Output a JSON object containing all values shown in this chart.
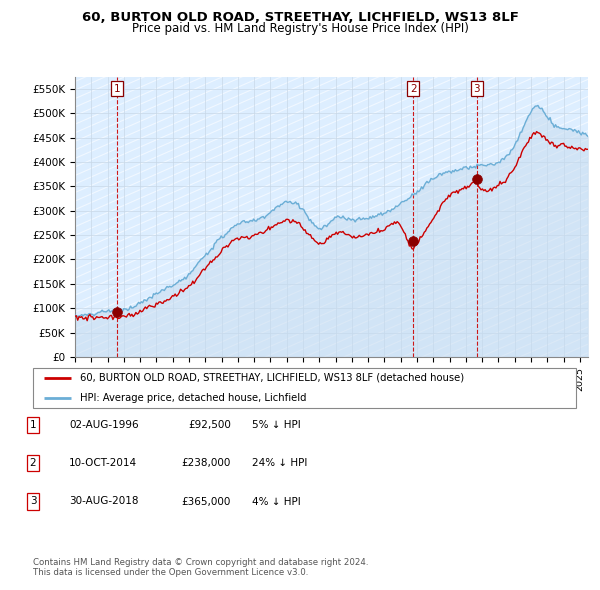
{
  "title": "60, BURTON OLD ROAD, STREETHAY, LICHFIELD, WS13 8LF",
  "subtitle": "Price paid vs. HM Land Registry's House Price Index (HPI)",
  "ylim": [
    0,
    575000
  ],
  "yticks": [
    0,
    50000,
    100000,
    150000,
    200000,
    250000,
    300000,
    350000,
    400000,
    450000,
    500000,
    550000
  ],
  "xlim_start": 1994.0,
  "xlim_end": 2025.5,
  "sale_dates": [
    1996.583,
    2014.774,
    2018.663
  ],
  "sale_prices": [
    92500,
    238000,
    365000
  ],
  "sale_labels": [
    "1",
    "2",
    "3"
  ],
  "hpi_color": "#6baed6",
  "hpi_fill_color": "#c6dbef",
  "price_color": "#cc0000",
  "marker_color": "#8b0000",
  "vline_color": "#cc0000",
  "grid_color": "#c8d8e8",
  "bg_color": "#ddeeff",
  "legend_label_price": "60, BURTON OLD ROAD, STREETHAY, LICHFIELD, WS13 8LF (detached house)",
  "legend_label_hpi": "HPI: Average price, detached house, Lichfield",
  "table_data": [
    [
      "1",
      "02-AUG-1996",
      "£92,500",
      "5% ↓ HPI"
    ],
    [
      "2",
      "10-OCT-2014",
      "£238,000",
      "24% ↓ HPI"
    ],
    [
      "3",
      "30-AUG-2018",
      "£365,000",
      "4% ↓ HPI"
    ]
  ],
  "footer_text": "Contains HM Land Registry data © Crown copyright and database right 2024.\nThis data is licensed under the Open Government Licence v3.0."
}
